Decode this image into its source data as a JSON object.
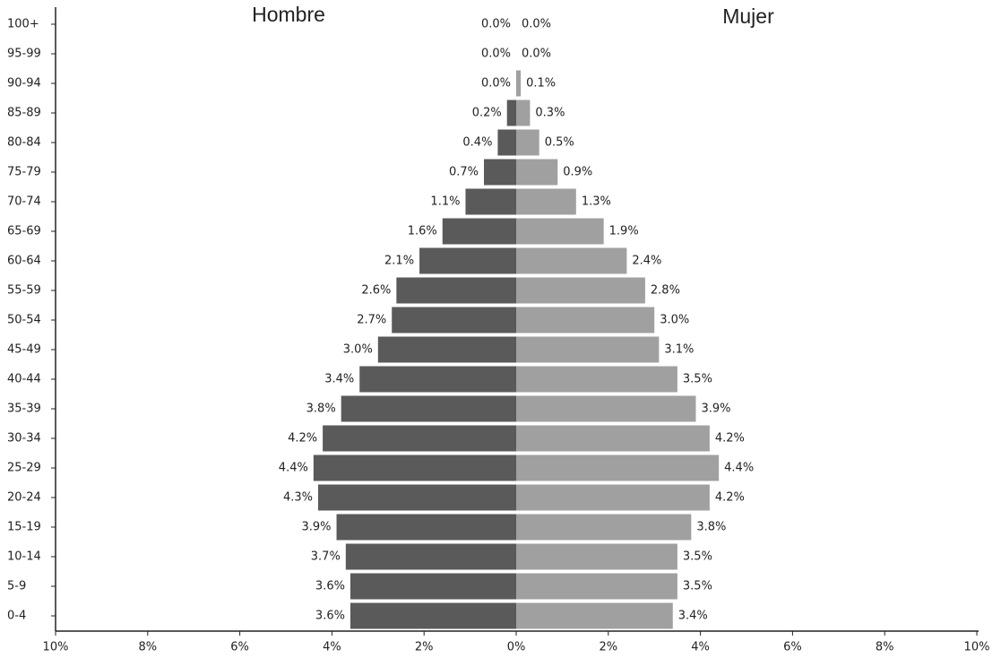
{
  "chart_data": {
    "type": "pyramid",
    "categories": [
      "100+",
      "95-99",
      "90-94",
      "85-89",
      "80-84",
      "75-79",
      "70-74",
      "65-69",
      "60-64",
      "55-59",
      "50-54",
      "45-49",
      "40-44",
      "35-39",
      "30-34",
      "25-29",
      "20-24",
      "15-19",
      "10-14",
      "5-9",
      "0-4"
    ],
    "series": [
      {
        "name": "Hombre",
        "color": "#5a5a5a",
        "values": [
          0.0,
          0.0,
          0.0,
          0.2,
          0.4,
          0.7,
          1.1,
          1.6,
          2.1,
          2.6,
          2.7,
          3.0,
          3.4,
          3.8,
          4.2,
          4.4,
          4.3,
          3.9,
          3.7,
          3.6,
          3.6
        ],
        "value_labels": [
          "0.0%",
          "0.0%",
          "0.0%",
          "0.2%",
          "0.4%",
          "0.7%",
          "1.1%",
          "1.6%",
          "2.1%",
          "2.6%",
          "2.7%",
          "3.0%",
          "3.4%",
          "3.8%",
          "4.2%",
          "4.4%",
          "4.3%",
          "3.9%",
          "3.7%",
          "3.6%",
          "3.6%"
        ]
      },
      {
        "name": "Mujer",
        "color": "#a0a0a0",
        "values": [
          0.0,
          0.0,
          0.1,
          0.3,
          0.5,
          0.9,
          1.3,
          1.9,
          2.4,
          2.8,
          3.0,
          3.1,
          3.5,
          3.9,
          4.2,
          4.4,
          4.2,
          3.8,
          3.5,
          3.5,
          3.4
        ],
        "value_labels": [
          "0.0%",
          "0.0%",
          "0.1%",
          "0.3%",
          "0.5%",
          "0.9%",
          "1.3%",
          "1.9%",
          "2.4%",
          "2.8%",
          "3.0%",
          "3.1%",
          "3.5%",
          "3.9%",
          "4.2%",
          "4.4%",
          "4.2%",
          "3.8%",
          "3.5%",
          "3.5%",
          "3.4%"
        ]
      }
    ],
    "xlim": [
      -10,
      10
    ],
    "xticks": [
      {
        "value": -10,
        "label": "10%"
      },
      {
        "value": -8,
        "label": "8%"
      },
      {
        "value": -6,
        "label": "6%"
      },
      {
        "value": -4,
        "label": "4%"
      },
      {
        "value": -2,
        "label": "2%"
      },
      {
        "value": 0,
        "label": "0%"
      },
      {
        "value": 2,
        "label": "2%"
      },
      {
        "value": 4,
        "label": "4%"
      },
      {
        "value": 6,
        "label": "6%"
      },
      {
        "value": 8,
        "label": "8%"
      },
      {
        "value": 10,
        "label": "10%"
      }
    ]
  }
}
